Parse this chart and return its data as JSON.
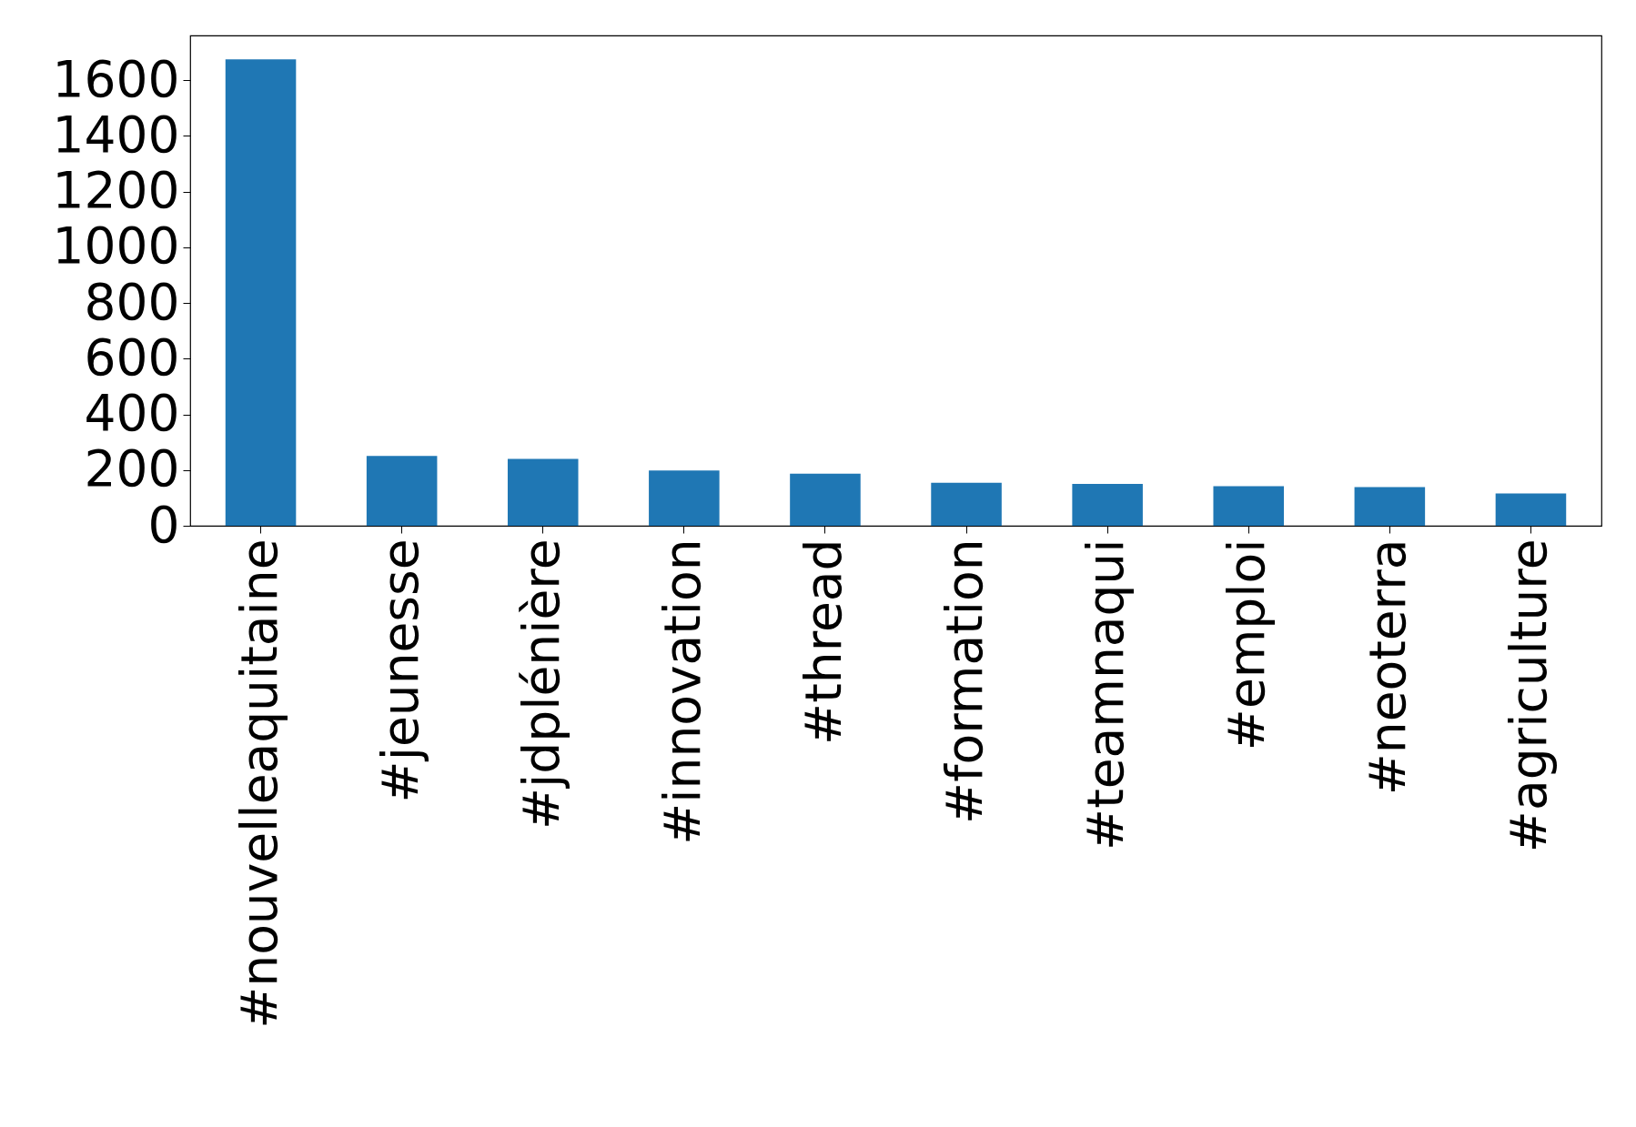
{
  "chart_data": {
    "type": "bar",
    "categories": [
      "#nouvelleaquitaine",
      "#jeunesse",
      "#jdplénière",
      "#innovation",
      "#thread",
      "#formation",
      "#teamnaqui",
      "#emploi",
      "#neoterra",
      "#agriculture"
    ],
    "values": [
      1674,
      251,
      240,
      198,
      187,
      154,
      150,
      142,
      139,
      116
    ],
    "color": "#1f77b4",
    "ylim": [
      0,
      1760
    ],
    "yticks": [
      0,
      200,
      400,
      600,
      800,
      1000,
      1200,
      1400,
      1600
    ],
    "grid": false
  }
}
